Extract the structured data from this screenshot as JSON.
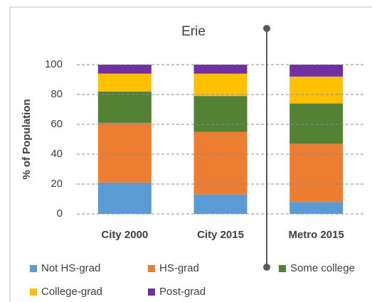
{
  "chart_data": {
    "type": "stacked_bar",
    "title": "Erie",
    "y_label": "% of Population",
    "categories": [
      "City 2000",
      "City 2015",
      "Metro 2015"
    ],
    "series": [
      {
        "name": "Not HS-grad",
        "color": "#5b9bd5",
        "values": [
          21,
          13,
          8
        ]
      },
      {
        "name": "HS-grad",
        "color": "#ed7d31",
        "values": [
          40,
          42,
          39
        ]
      },
      {
        "name": "Some college",
        "color": "#548235",
        "values": [
          21,
          24,
          27
        ]
      },
      {
        "name": "College-grad",
        "color": "#ffc000",
        "values": [
          12,
          15,
          18
        ]
      },
      {
        "name": "Post-grad",
        "color": "#7030a0",
        "values": [
          6,
          6,
          8
        ]
      }
    ],
    "ylim": [
      0,
      100
    ],
    "yticks": [
      0,
      20,
      40,
      60,
      80,
      100
    ],
    "grid": true
  }
}
